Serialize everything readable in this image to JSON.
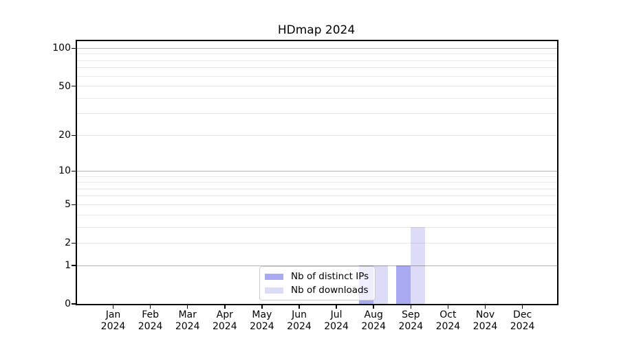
{
  "chart_data": {
    "type": "bar",
    "title": "HDmap 2024",
    "x_tick_months": [
      "Jan",
      "Feb",
      "Mar",
      "Apr",
      "May",
      "Jun",
      "Jul",
      "Aug",
      "Sep",
      "Oct",
      "Nov",
      "Dec"
    ],
    "x_tick_year": "2024",
    "y_ticks": [
      0,
      1,
      2,
      5,
      10,
      20,
      50,
      100
    ],
    "scale": "log1p",
    "ylim": [
      0,
      114
    ],
    "grid": {
      "major_gridlines": [
        1,
        10,
        100
      ],
      "minor_gridlines": [
        2,
        3,
        4,
        5,
        6,
        7,
        8,
        9,
        20,
        30,
        40,
        50,
        60,
        70,
        80,
        90
      ],
      "major_color": "#b3b3b3",
      "minor_color": "#e9e9e9"
    },
    "series": [
      {
        "name": "Nb of distinct IPs",
        "color": "#a9a9f2",
        "values": [
          0,
          0,
          0,
          0,
          0,
          0,
          0,
          1,
          1,
          0,
          0,
          0
        ]
      },
      {
        "name": "Nb of downloads",
        "color": "#dcdcf6",
        "values": [
          0,
          0,
          0,
          0,
          0,
          0,
          0,
          1,
          3,
          0,
          0,
          0
        ]
      }
    ],
    "legend": {
      "position": "lower center",
      "labels": [
        "Nb of distinct IPs",
        "Nb of downloads"
      ]
    }
  }
}
